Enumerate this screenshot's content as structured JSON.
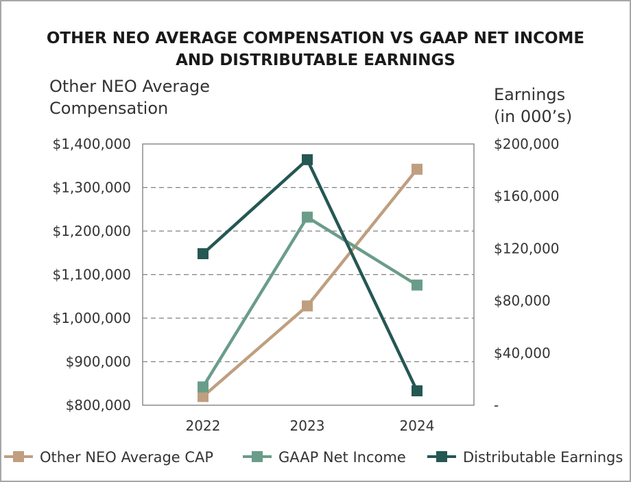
{
  "chart_data": {
    "type": "line",
    "title_line1": "OTHER NEO AVERAGE COMPENSATION VS GAAP NET INCOME",
    "title_line2": "AND DISTRIBUTABLE EARNINGS",
    "y_left_label_line1": "Other NEO Average",
    "y_left_label_line2": "Compensation",
    "y_right_label_line1": "Earnings",
    "y_right_label_line2": "(in 000’s)",
    "categories": [
      "2022",
      "2023",
      "2024"
    ],
    "y_left": {
      "ylim": [
        800000,
        1400000
      ],
      "ticks": [
        "$800,000",
        "$900,000",
        "$1,000,000",
        "$1,100,000",
        "$1,200,000",
        "$1,300,000",
        "$1,400,000"
      ],
      "tick_values": [
        800000,
        900000,
        1000000,
        1100000,
        1200000,
        1300000,
        1400000
      ]
    },
    "y_right": {
      "ylim": [
        0,
        200000
      ],
      "ticks": [
        "-",
        "$40,000",
        "$80,000",
        "$120,000",
        "$160,000",
        "$200,000"
      ],
      "tick_values": [
        0,
        40000,
        80000,
        120000,
        160000,
        200000
      ]
    },
    "series": [
      {
        "name": "Other NEO Average CAP",
        "axis": "left",
        "color": "#bf9f7f",
        "values": [
          820000,
          1028000,
          1342000
        ]
      },
      {
        "name": "GAAP Net Income",
        "axis": "right",
        "color": "#6a9d89",
        "values": [
          14000,
          144000,
          92000
        ]
      },
      {
        "name": "Distributable Earnings",
        "axis": "right",
        "color": "#255753",
        "values": [
          116000,
          188000,
          11000
        ]
      }
    ]
  }
}
